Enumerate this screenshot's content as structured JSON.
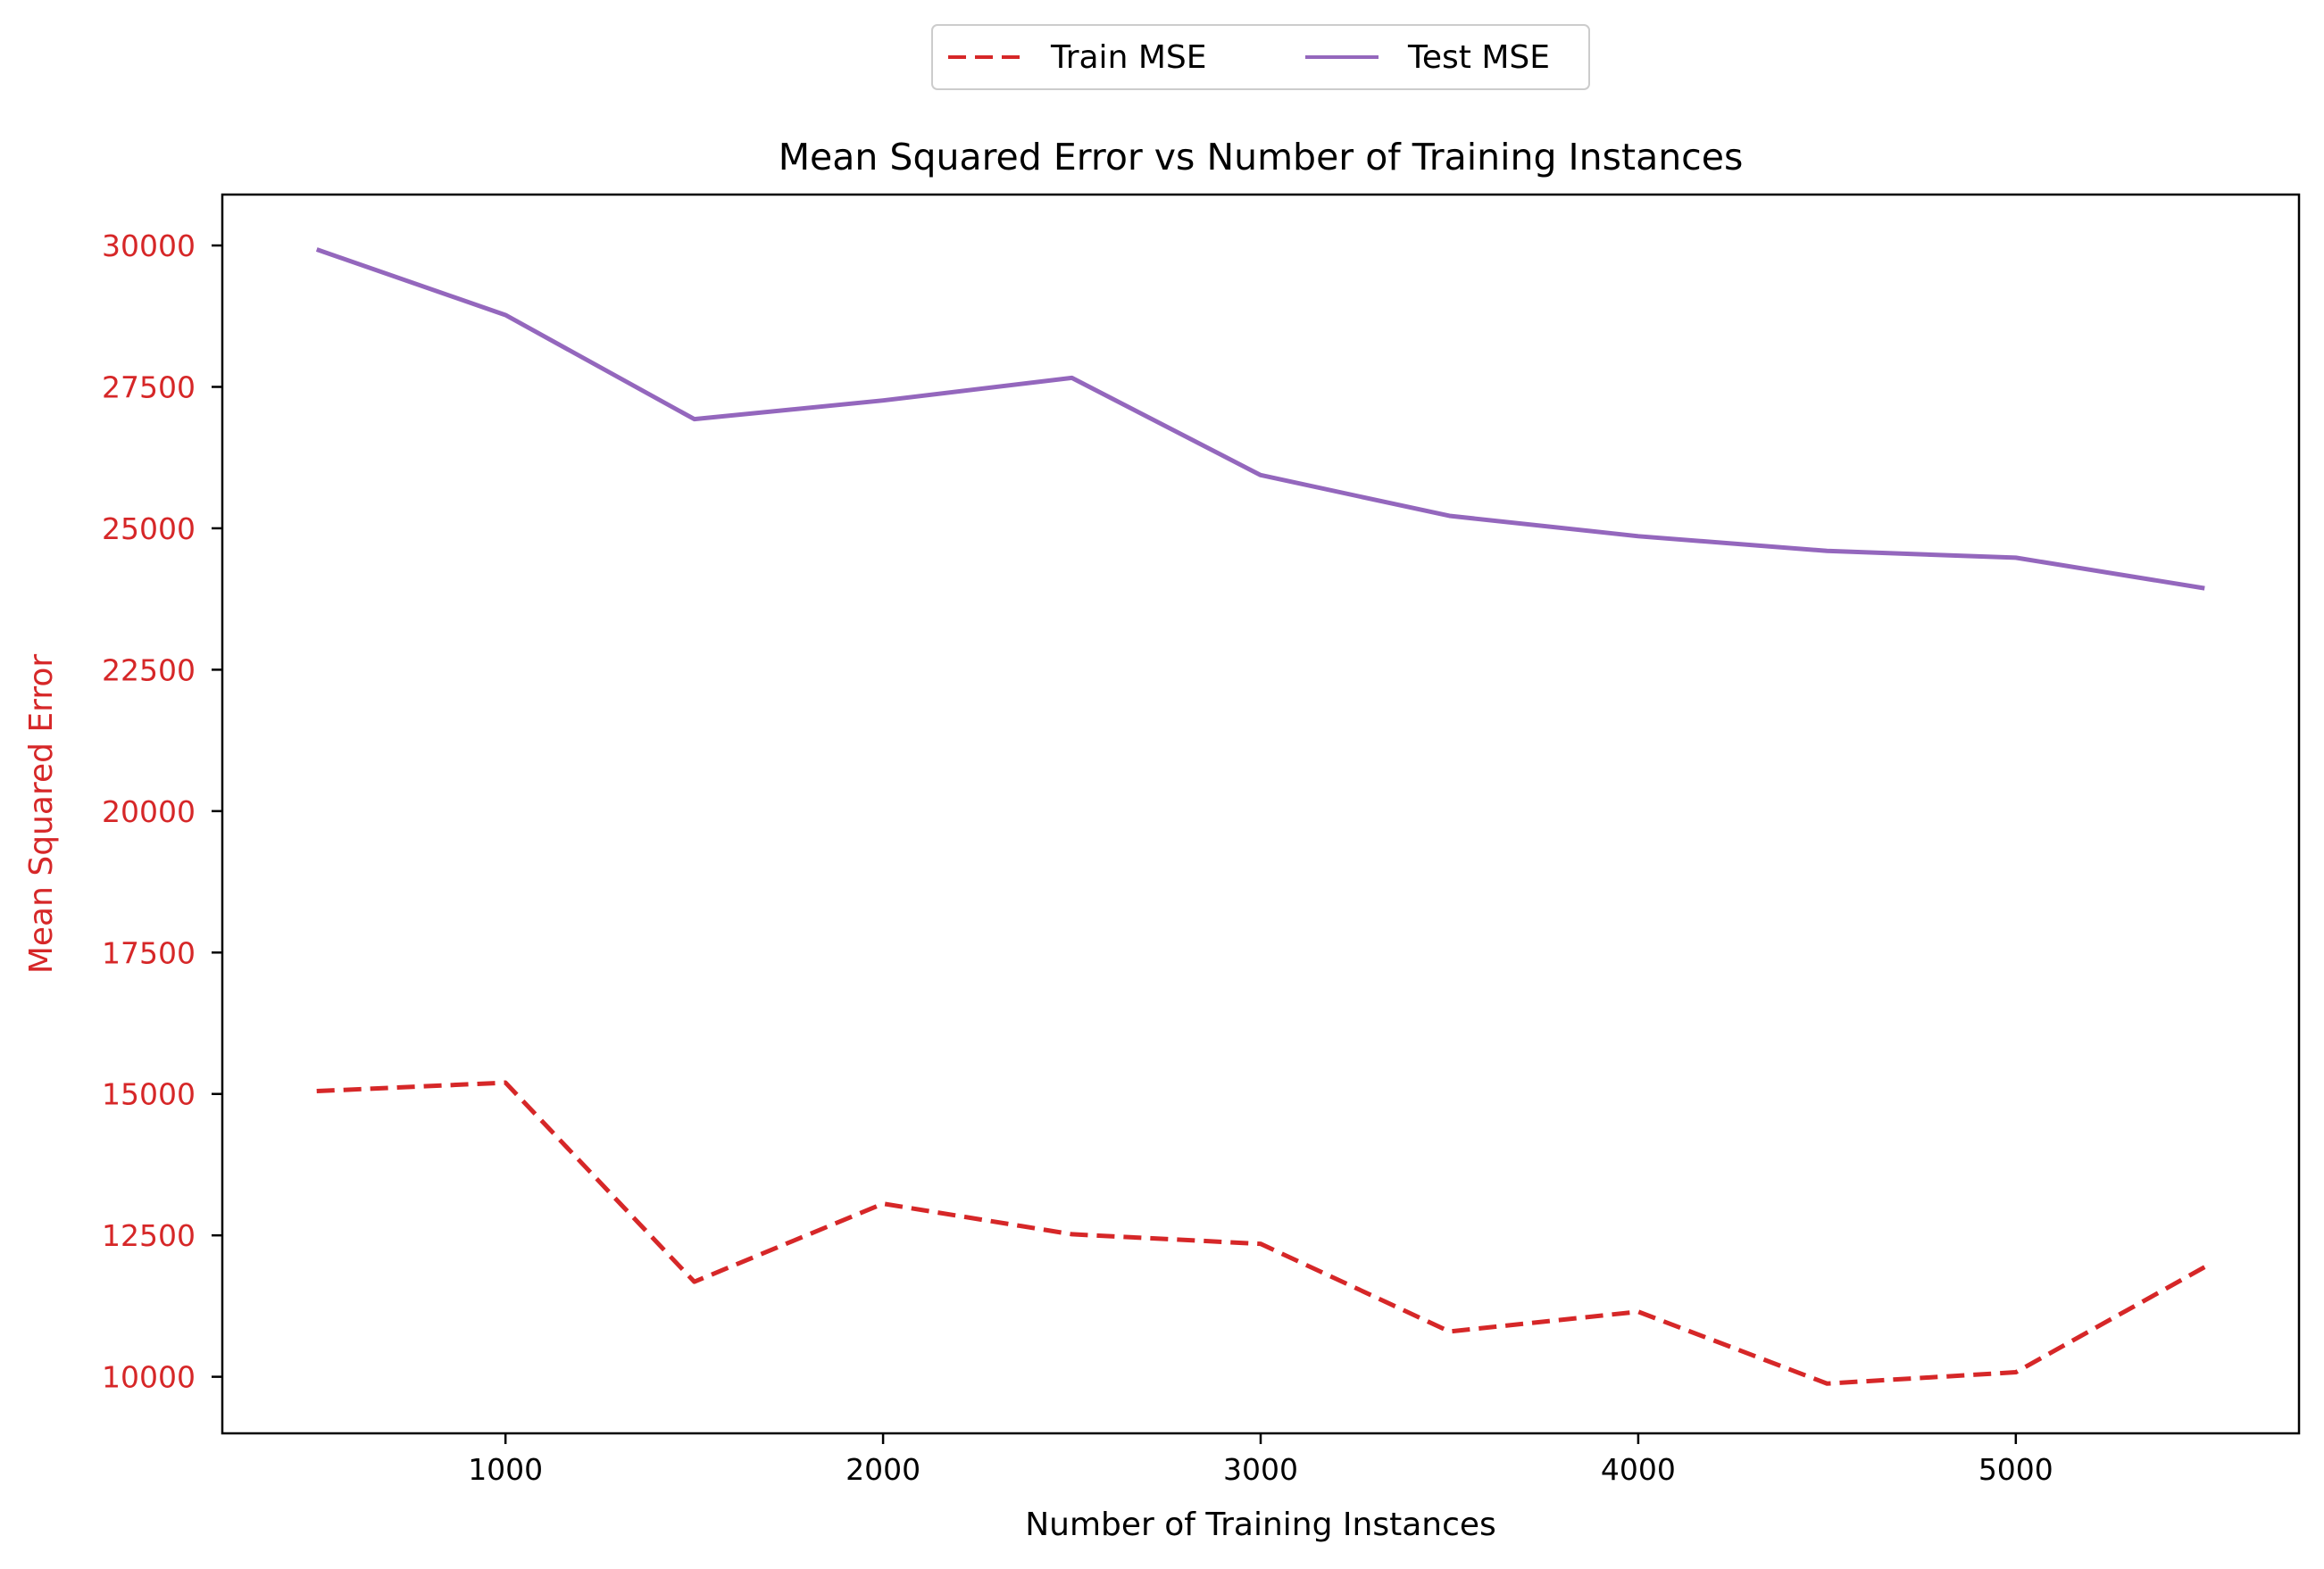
{
  "chart_data": {
    "type": "line",
    "title": "Mean Squared Error vs Number of Training Instances",
    "xlabel": "Number of Training Instances",
    "ylabel": "Mean Squared Error",
    "xlim": [
      250,
      5750
    ],
    "ylim": [
      9000,
      30900
    ],
    "xticks": [
      1000,
      2000,
      3000,
      4000,
      5000
    ],
    "yticks": [
      10000,
      12500,
      15000,
      17500,
      20000,
      22500,
      25000,
      27500,
      30000
    ],
    "ylabel_color": "#d62728",
    "ytick_color": "#d62728",
    "grid": false,
    "legend_position": "top-center, above the plot",
    "x": [
      500,
      1000,
      1500,
      2000,
      2500,
      3000,
      3500,
      4000,
      4500,
      5000,
      5500
    ],
    "series": [
      {
        "name": "Train MSE",
        "color": "#d62728",
        "style": "dashed",
        "values": [
          15050,
          15200,
          11680,
          13060,
          12520,
          12350,
          10800,
          11150,
          9880,
          10080,
          11940
        ]
      },
      {
        "name": "Test MSE",
        "color": "#9467bd",
        "style": "solid",
        "values": [
          29930,
          28770,
          26930,
          27260,
          27660,
          25940,
          25220,
          24860,
          24600,
          24480,
          23940
        ]
      }
    ]
  }
}
